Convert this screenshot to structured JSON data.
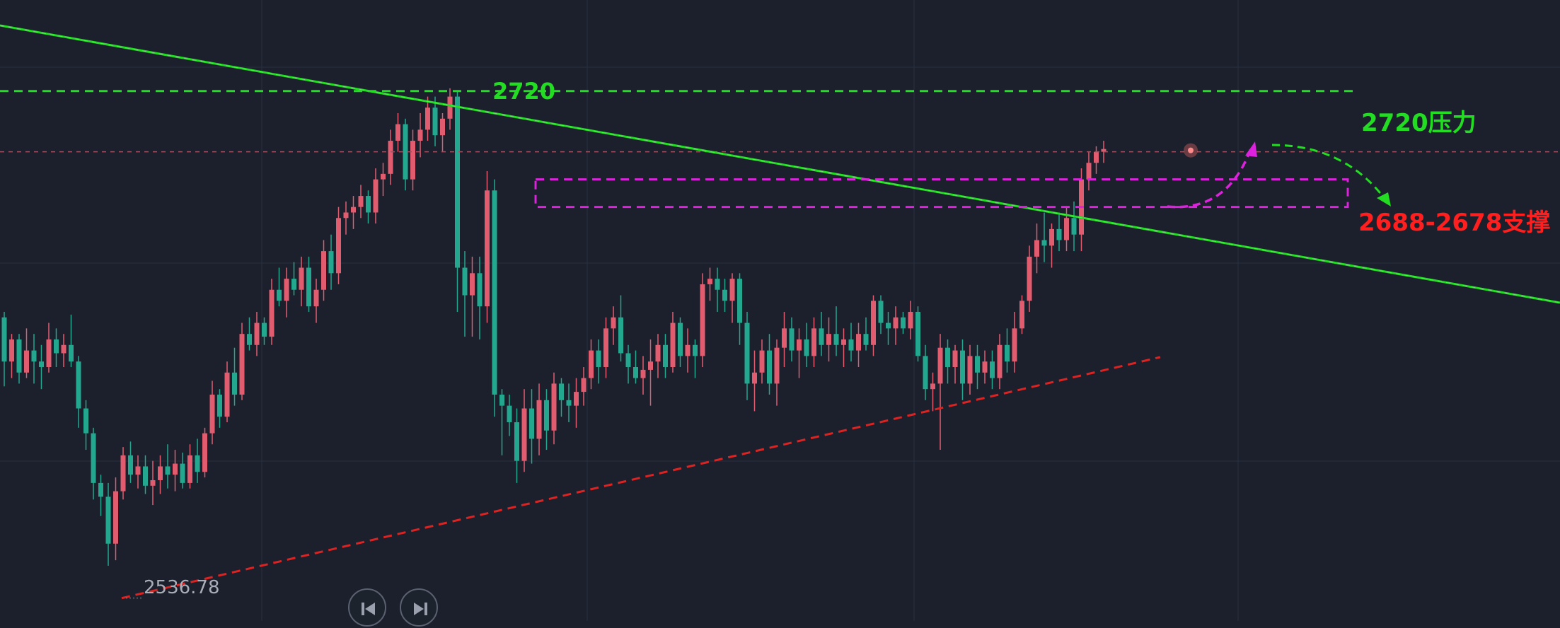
{
  "colors": {
    "background": "#1b202c",
    "grid": "#283040",
    "candle_up": "#e25c6f",
    "candle_down": "#23a78f",
    "resistance": "#22dd22",
    "support_box": "#dd22dd",
    "support_label": "#ff1f1f",
    "trendline_low": "#dd2222",
    "current_price_line": "#a05060"
  },
  "chart_data": {
    "type": "candlestick",
    "y_axis_range": [
      2528,
      2753
    ],
    "x_index_range": [
      0,
      155
    ],
    "candles_ohlc": [
      [
        2638,
        2640,
        2613,
        2622
      ],
      [
        2622,
        2632,
        2616,
        2630
      ],
      [
        2630,
        2632,
        2614,
        2618
      ],
      [
        2618,
        2634,
        2616,
        2626
      ],
      [
        2626,
        2632,
        2614,
        2622
      ],
      [
        2622,
        2628,
        2612,
        2620
      ],
      [
        2620,
        2636,
        2618,
        2630
      ],
      [
        2630,
        2634,
        2620,
        2625
      ],
      [
        2625,
        2632,
        2620,
        2628
      ],
      [
        2628,
        2639,
        2620,
        2622
      ],
      [
        2622,
        2624,
        2598,
        2605
      ],
      [
        2605,
        2608,
        2590,
        2596
      ],
      [
        2596,
        2598,
        2572,
        2578
      ],
      [
        2578,
        2581,
        2566,
        2573
      ],
      [
        2573,
        2578,
        2548,
        2556
      ],
      [
        2556,
        2580,
        2550,
        2575
      ],
      [
        2575,
        2591,
        2572,
        2588
      ],
      [
        2588,
        2593,
        2578,
        2581
      ],
      [
        2581,
        2588,
        2576,
        2584
      ],
      [
        2584,
        2588,
        2574,
        2577
      ],
      [
        2577,
        2586,
        2570,
        2579
      ],
      [
        2579,
        2588,
        2574,
        2584
      ],
      [
        2584,
        2592,
        2576,
        2581
      ],
      [
        2581,
        2590,
        2575,
        2585
      ],
      [
        2585,
        2589,
        2576,
        2578
      ],
      [
        2578,
        2592,
        2576,
        2588
      ],
      [
        2588,
        2594,
        2578,
        2582
      ],
      [
        2582,
        2598,
        2580,
        2596
      ],
      [
        2596,
        2615,
        2592,
        2610
      ],
      [
        2610,
        2612,
        2598,
        2602
      ],
      [
        2602,
        2622,
        2600,
        2618
      ],
      [
        2618,
        2627,
        2606,
        2610
      ],
      [
        2610,
        2636,
        2608,
        2632
      ],
      [
        2632,
        2638,
        2626,
        2628
      ],
      [
        2628,
        2640,
        2624,
        2636
      ],
      [
        2636,
        2638,
        2628,
        2631
      ],
      [
        2631,
        2652,
        2628,
        2648
      ],
      [
        2648,
        2656,
        2642,
        2644
      ],
      [
        2644,
        2656,
        2638,
        2652
      ],
      [
        2652,
        2658,
        2646,
        2648
      ],
      [
        2648,
        2660,
        2642,
        2656
      ],
      [
        2656,
        2660,
        2640,
        2642
      ],
      [
        2642,
        2652,
        2636,
        2648
      ],
      [
        2648,
        2666,
        2644,
        2662
      ],
      [
        2662,
        2668,
        2648,
        2654
      ],
      [
        2654,
        2678,
        2650,
        2674
      ],
      [
        2674,
        2680,
        2668,
        2676
      ],
      [
        2676,
        2682,
        2670,
        2678
      ],
      [
        2678,
        2686,
        2674,
        2682
      ],
      [
        2682,
        2684,
        2672,
        2676
      ],
      [
        2676,
        2692,
        2672,
        2688
      ],
      [
        2688,
        2694,
        2682,
        2690
      ],
      [
        2690,
        2706,
        2686,
        2702
      ],
      [
        2702,
        2712,
        2698,
        2708
      ],
      [
        2708,
        2710,
        2684,
        2688
      ],
      [
        2688,
        2706,
        2684,
        2702
      ],
      [
        2702,
        2712,
        2696,
        2706
      ],
      [
        2706,
        2718,
        2702,
        2714
      ],
      [
        2714,
        2718,
        2700,
        2704
      ],
      [
        2704,
        2712,
        2698,
        2710
      ],
      [
        2710,
        2721,
        2706,
        2718
      ],
      [
        2718,
        2720,
        2640,
        2656
      ],
      [
        2656,
        2662,
        2631,
        2646
      ],
      [
        2646,
        2660,
        2631,
        2654
      ],
      [
        2654,
        2660,
        2630,
        2642
      ],
      [
        2642,
        2691,
        2636,
        2684
      ],
      [
        2684,
        2688,
        2602,
        2610
      ],
      [
        2610,
        2612,
        2588,
        2606
      ],
      [
        2606,
        2610,
        2595,
        2600
      ],
      [
        2600,
        2605,
        2578,
        2586
      ],
      [
        2586,
        2612,
        2582,
        2605
      ],
      [
        2605,
        2612,
        2585,
        2594
      ],
      [
        2594,
        2614,
        2588,
        2608
      ],
      [
        2608,
        2612,
        2590,
        2597
      ],
      [
        2597,
        2618,
        2592,
        2614
      ],
      [
        2614,
        2616,
        2602,
        2608
      ],
      [
        2608,
        2614,
        2600,
        2606
      ],
      [
        2606,
        2616,
        2598,
        2611
      ],
      [
        2611,
        2620,
        2606,
        2616
      ],
      [
        2616,
        2630,
        2612,
        2626
      ],
      [
        2626,
        2630,
        2614,
        2620
      ],
      [
        2620,
        2638,
        2616,
        2634
      ],
      [
        2634,
        2642,
        2628,
        2638
      ],
      [
        2638,
        2646,
        2622,
        2625
      ],
      [
        2625,
        2628,
        2614,
        2620
      ],
      [
        2620,
        2626,
        2614,
        2616
      ],
      [
        2616,
        2624,
        2610,
        2619
      ],
      [
        2619,
        2630,
        2606,
        2622
      ],
      [
        2622,
        2632,
        2616,
        2628
      ],
      [
        2628,
        2632,
        2616,
        2620
      ],
      [
        2620,
        2640,
        2618,
        2636
      ],
      [
        2636,
        2638,
        2620,
        2624
      ],
      [
        2624,
        2634,
        2618,
        2628
      ],
      [
        2628,
        2630,
        2616,
        2624
      ],
      [
        2624,
        2654,
        2620,
        2650
      ],
      [
        2650,
        2656,
        2644,
        2652
      ],
      [
        2652,
        2656,
        2640,
        2648
      ],
      [
        2648,
        2652,
        2640,
        2644
      ],
      [
        2644,
        2654,
        2636,
        2652
      ],
      [
        2652,
        2654,
        2628,
        2636
      ],
      [
        2636,
        2640,
        2608,
        2614
      ],
      [
        2614,
        2626,
        2604,
        2618
      ],
      [
        2618,
        2630,
        2614,
        2626
      ],
      [
        2626,
        2632,
        2610,
        2614
      ],
      [
        2614,
        2630,
        2606,
        2627
      ],
      [
        2627,
        2640,
        2620,
        2634
      ],
      [
        2634,
        2638,
        2622,
        2626
      ],
      [
        2626,
        2634,
        2616,
        2630
      ],
      [
        2630,
        2636,
        2620,
        2624
      ],
      [
        2624,
        2638,
        2620,
        2634
      ],
      [
        2634,
        2640,
        2624,
        2628
      ],
      [
        2628,
        2638,
        2622,
        2632
      ],
      [
        2632,
        2642,
        2624,
        2628
      ],
      [
        2628,
        2634,
        2620,
        2630
      ],
      [
        2630,
        2636,
        2622,
        2626
      ],
      [
        2626,
        2636,
        2620,
        2632
      ],
      [
        2632,
        2638,
        2626,
        2628
      ],
      [
        2628,
        2646,
        2624,
        2644
      ],
      [
        2644,
        2646,
        2632,
        2636
      ],
      [
        2636,
        2640,
        2628,
        2634
      ],
      [
        2634,
        2642,
        2628,
        2638
      ],
      [
        2638,
        2640,
        2632,
        2634
      ],
      [
        2634,
        2644,
        2630,
        2640
      ],
      [
        2640,
        2642,
        2622,
        2624
      ],
      [
        2624,
        2628,
        2608,
        2612
      ],
      [
        2612,
        2618,
        2604,
        2614
      ],
      [
        2614,
        2632,
        2590,
        2627
      ],
      [
        2627,
        2630,
        2614,
        2620
      ],
      [
        2620,
        2628,
        2614,
        2626
      ],
      [
        2626,
        2630,
        2608,
        2614
      ],
      [
        2614,
        2628,
        2610,
        2624
      ],
      [
        2624,
        2628,
        2612,
        2618
      ],
      [
        2618,
        2626,
        2614,
        2622
      ],
      [
        2622,
        2626,
        2612,
        2616
      ],
      [
        2616,
        2632,
        2612,
        2628
      ],
      [
        2628,
        2634,
        2618,
        2622
      ],
      [
        2622,
        2640,
        2618,
        2634
      ],
      [
        2634,
        2646,
        2632,
        2644
      ],
      [
        2644,
        2664,
        2640,
        2660
      ],
      [
        2660,
        2672,
        2654,
        2666
      ],
      [
        2666,
        2676,
        2658,
        2664
      ],
      [
        2664,
        2672,
        2656,
        2670
      ],
      [
        2670,
        2676,
        2662,
        2666
      ],
      [
        2666,
        2678,
        2662,
        2674
      ],
      [
        2674,
        2680,
        2662,
        2668
      ],
      [
        2668,
        2692,
        2662,
        2688
      ],
      [
        2688,
        2698,
        2684,
        2694
      ],
      [
        2694,
        2700,
        2690,
        2698
      ],
      [
        2698,
        2702,
        2694,
        2699
      ]
    ],
    "low_price": 2536.78,
    "low_label": "2536.78",
    "high_label": "2720",
    "resistance_level": 2720,
    "resistance_label": "2720压力",
    "support_zone": [
      2678,
      2688
    ],
    "support_label": "2688-2678支撑",
    "current_price": 2698
  },
  "controls": {
    "prev_button_icon": "skip-back-icon",
    "next_button_icon": "skip-forward-icon"
  }
}
